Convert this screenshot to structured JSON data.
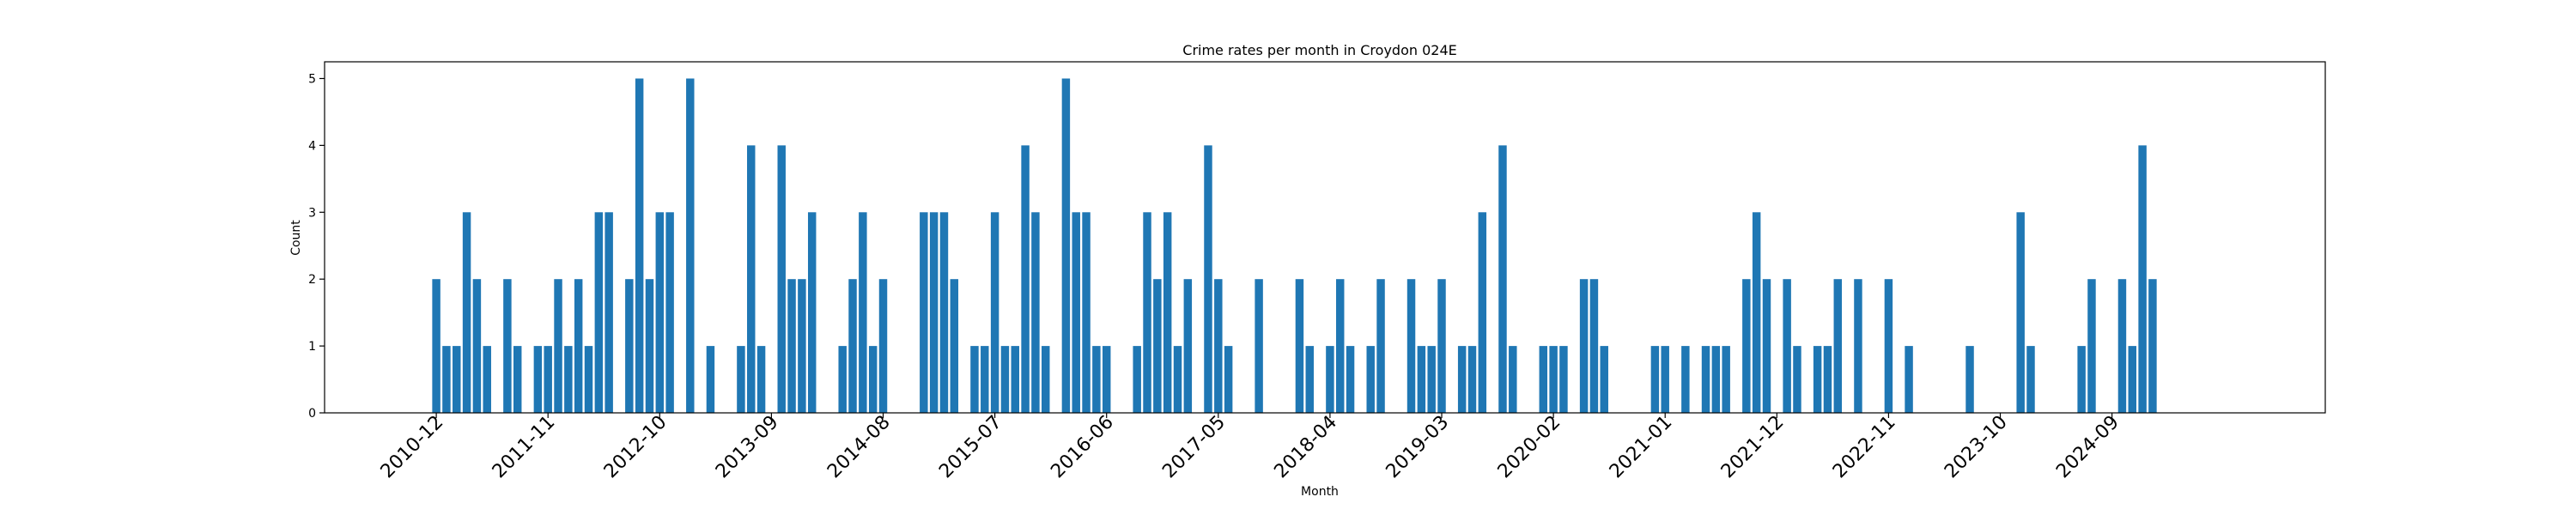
{
  "chart_data": {
    "type": "bar",
    "title": "Crime rates per month in Croydon 024E",
    "xlabel": "Month",
    "ylabel": "Count",
    "ylim": [
      0,
      5.25
    ],
    "yticks": [
      0,
      1,
      2,
      3,
      4,
      5
    ],
    "xlim": [
      "2010-01",
      "2026-06"
    ],
    "xticks": [
      "2010-12",
      "2011-11",
      "2012-10",
      "2013-09",
      "2014-08",
      "2015-07",
      "2016-06",
      "2017-05",
      "2018-04",
      "2019-03",
      "2020-02",
      "2021-01",
      "2021-12",
      "2022-11",
      "2023-10",
      "2024-09"
    ],
    "grid": false,
    "color": "#1f77b4",
    "points": [
      [
        "2010-12",
        2
      ],
      [
        "2011-01",
        1
      ],
      [
        "2011-02",
        1
      ],
      [
        "2011-03",
        3
      ],
      [
        "2011-04",
        2
      ],
      [
        "2011-05",
        1
      ],
      [
        "2011-07",
        2
      ],
      [
        "2011-08",
        1
      ],
      [
        "2011-10",
        1
      ],
      [
        "2011-11",
        1
      ],
      [
        "2011-12",
        2
      ],
      [
        "2012-01",
        1
      ],
      [
        "2012-02",
        2
      ],
      [
        "2012-03",
        1
      ],
      [
        "2012-04",
        3
      ],
      [
        "2012-05",
        3
      ],
      [
        "2012-07",
        2
      ],
      [
        "2012-08",
        5
      ],
      [
        "2012-09",
        2
      ],
      [
        "2012-10",
        3
      ],
      [
        "2012-11",
        3
      ],
      [
        "2013-01",
        5
      ],
      [
        "2013-03",
        1
      ],
      [
        "2013-06",
        1
      ],
      [
        "2013-07",
        4
      ],
      [
        "2013-08",
        1
      ],
      [
        "2013-10",
        4
      ],
      [
        "2013-11",
        2
      ],
      [
        "2013-12",
        2
      ],
      [
        "2014-01",
        3
      ],
      [
        "2014-04",
        1
      ],
      [
        "2014-05",
        2
      ],
      [
        "2014-06",
        3
      ],
      [
        "2014-07",
        1
      ],
      [
        "2014-08",
        2
      ],
      [
        "2014-12",
        3
      ],
      [
        "2015-01",
        3
      ],
      [
        "2015-02",
        3
      ],
      [
        "2015-03",
        2
      ],
      [
        "2015-05",
        1
      ],
      [
        "2015-06",
        1
      ],
      [
        "2015-07",
        3
      ],
      [
        "2015-08",
        1
      ],
      [
        "2015-09",
        1
      ],
      [
        "2015-10",
        4
      ],
      [
        "2015-11",
        3
      ],
      [
        "2015-12",
        1
      ],
      [
        "2016-02",
        5
      ],
      [
        "2016-03",
        3
      ],
      [
        "2016-04",
        3
      ],
      [
        "2016-05",
        1
      ],
      [
        "2016-06",
        1
      ],
      [
        "2016-09",
        1
      ],
      [
        "2016-10",
        3
      ],
      [
        "2016-11",
        2
      ],
      [
        "2016-12",
        3
      ],
      [
        "2017-01",
        1
      ],
      [
        "2017-02",
        2
      ],
      [
        "2017-04",
        4
      ],
      [
        "2017-05",
        2
      ],
      [
        "2017-06",
        1
      ],
      [
        "2017-09",
        2
      ],
      [
        "2018-01",
        2
      ],
      [
        "2018-02",
        1
      ],
      [
        "2018-04",
        1
      ],
      [
        "2018-05",
        2
      ],
      [
        "2018-06",
        1
      ],
      [
        "2018-08",
        1
      ],
      [
        "2018-09",
        2
      ],
      [
        "2018-12",
        2
      ],
      [
        "2019-01",
        1
      ],
      [
        "2019-02",
        1
      ],
      [
        "2019-03",
        2
      ],
      [
        "2019-05",
        1
      ],
      [
        "2019-06",
        1
      ],
      [
        "2019-07",
        3
      ],
      [
        "2019-09",
        4
      ],
      [
        "2019-10",
        1
      ],
      [
        "2020-01",
        1
      ],
      [
        "2020-02",
        1
      ],
      [
        "2020-03",
        1
      ],
      [
        "2020-05",
        2
      ],
      [
        "2020-06",
        2
      ],
      [
        "2020-07",
        1
      ],
      [
        "2020-12",
        1
      ],
      [
        "2021-01",
        1
      ],
      [
        "2021-03",
        1
      ],
      [
        "2021-05",
        1
      ],
      [
        "2021-06",
        1
      ],
      [
        "2021-07",
        1
      ],
      [
        "2021-09",
        2
      ],
      [
        "2021-10",
        3
      ],
      [
        "2021-11",
        2
      ],
      [
        "2022-01",
        2
      ],
      [
        "2022-02",
        1
      ],
      [
        "2022-04",
        1
      ],
      [
        "2022-05",
        1
      ],
      [
        "2022-06",
        2
      ],
      [
        "2022-08",
        2
      ],
      [
        "2022-11",
        2
      ],
      [
        "2023-01",
        1
      ],
      [
        "2023-07",
        1
      ],
      [
        "2023-12",
        3
      ],
      [
        "2024-01",
        1
      ],
      [
        "2024-06",
        1
      ],
      [
        "2024-07",
        2
      ],
      [
        "2024-10",
        2
      ],
      [
        "2024-11",
        1
      ],
      [
        "2024-12",
        4
      ],
      [
        "2025-01",
        2
      ]
    ]
  }
}
